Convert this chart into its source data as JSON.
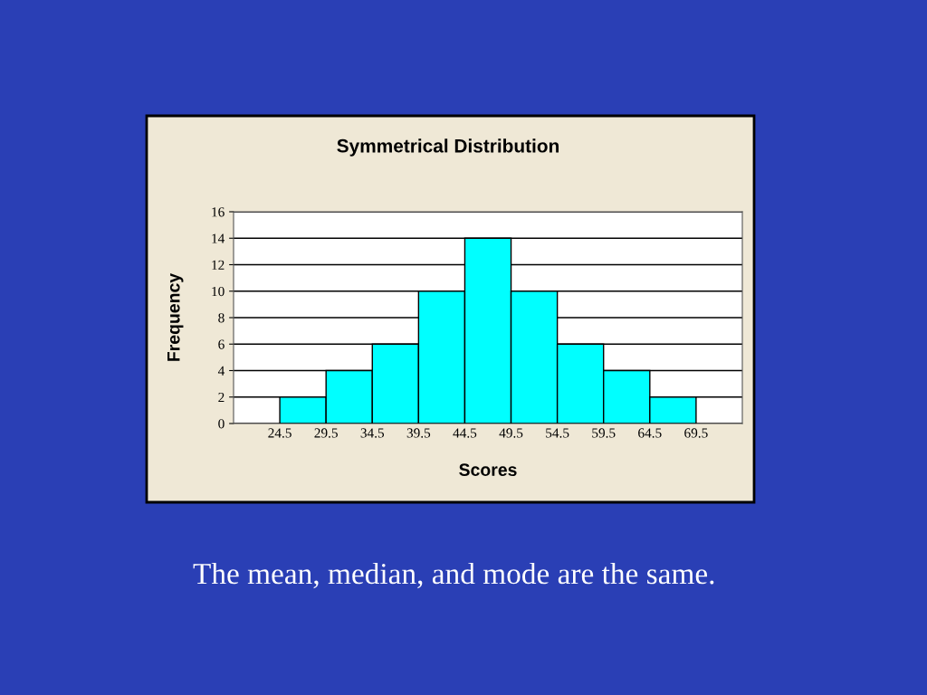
{
  "chart_data": {
    "type": "histogram",
    "title": "Symmetrical Distribution",
    "xlabel": "Scores",
    "ylabel": "Frequency",
    "bins": [
      24.5,
      29.5,
      34.5,
      39.5,
      44.5,
      49.5,
      54.5,
      59.5,
      64.5,
      69.5
    ],
    "values": [
      2,
      4,
      6,
      10,
      14,
      10,
      6,
      4,
      2
    ],
    "color": "#00ffff",
    "xlim": [
      19.5,
      74.5
    ],
    "xticks": [
      24.5,
      29.5,
      34.5,
      39.5,
      44.5,
      49.5,
      54.5,
      59.5,
      64.5,
      69.5
    ],
    "ylim": [
      0,
      16
    ],
    "yticks": [
      0,
      2,
      4,
      6,
      8,
      10,
      12,
      14,
      16
    ],
    "grid": "y",
    "legend": false,
    "annotations": [
      "The mean, median, and mode are the same."
    ]
  }
}
